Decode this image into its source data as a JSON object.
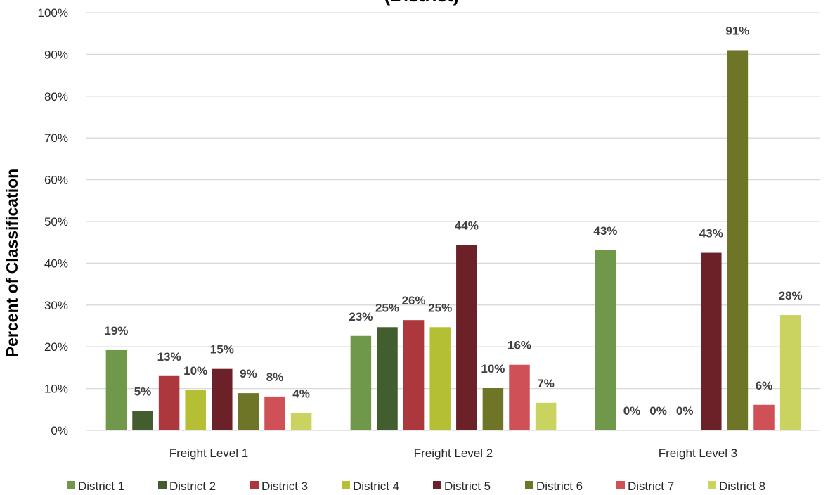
{
  "chart_data": {
    "type": "bar",
    "title": "(District)",
    "ylabel": "Percent of Classification",
    "xlabel": "",
    "ylim": [
      0,
      100
    ],
    "yticks": [
      "0%",
      "10%",
      "20%",
      "30%",
      "40%",
      "50%",
      "60%",
      "70%",
      "80%",
      "90%",
      "100%"
    ],
    "grid": true,
    "legend_position": "bottom",
    "categories": [
      "Freight Level 1",
      "Freight Level 2",
      "Freight Level 3"
    ],
    "series": [
      {
        "name": "District 1",
        "color": "#70984b",
        "values": [
          19.2,
          22.6,
          43.1
        ],
        "labels": [
          "19%",
          "23%",
          "43%"
        ]
      },
      {
        "name": "District 2",
        "color": "#425e2e",
        "values": [
          4.6,
          24.7,
          0
        ],
        "labels": [
          "5%",
          "25%",
          "0%"
        ]
      },
      {
        "name": "District 3",
        "color": "#ac373d",
        "values": [
          13.0,
          26.4,
          0
        ],
        "labels": [
          "13%",
          "26%",
          "0%"
        ]
      },
      {
        "name": "District 4",
        "color": "#b5bf33",
        "values": [
          9.6,
          24.7,
          0
        ],
        "labels": [
          "10%",
          "25%",
          "0%"
        ]
      },
      {
        "name": "District 5",
        "color": "#6b2127",
        "values": [
          14.7,
          44.4,
          42.5
        ],
        "labels": [
          "15%",
          "44%",
          "43%"
        ]
      },
      {
        "name": "District 6",
        "color": "#6e7526",
        "values": [
          8.9,
          10.1,
          91.0
        ],
        "labels": [
          "9%",
          "10%",
          "91%"
        ]
      },
      {
        "name": "District 7",
        "color": "#d05058",
        "values": [
          8.1,
          15.7,
          6.1
        ],
        "labels": [
          "8%",
          "16%",
          "6%"
        ]
      },
      {
        "name": "District 8",
        "color": "#cad35f",
        "values": [
          4.1,
          6.6,
          27.6
        ],
        "labels": [
          "4%",
          "7%",
          "28%"
        ]
      }
    ]
  }
}
